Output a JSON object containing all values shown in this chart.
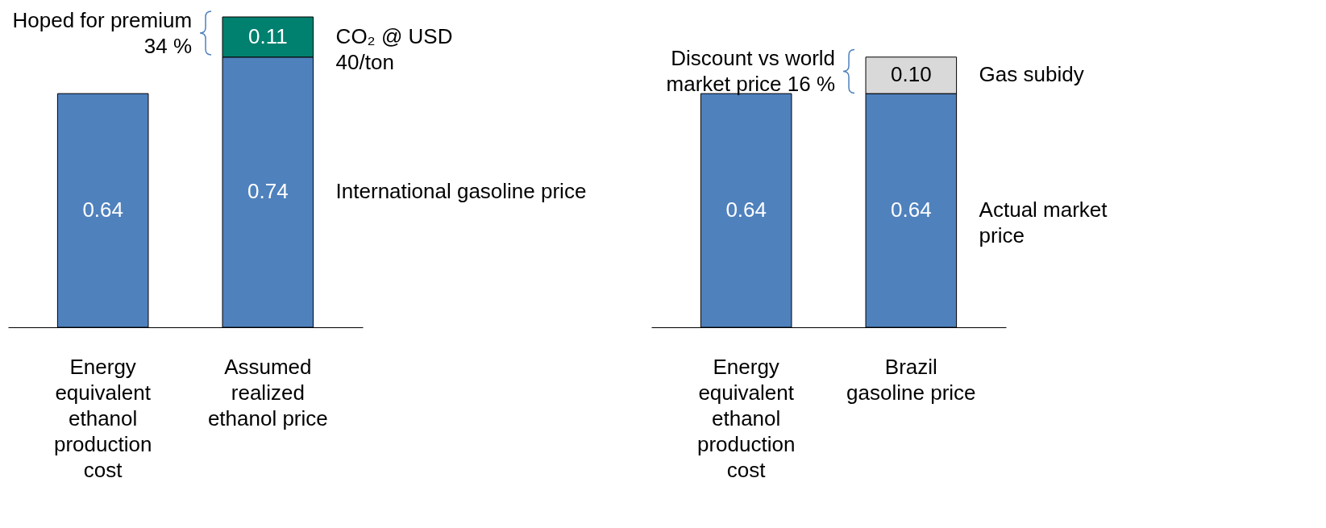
{
  "chart_data": [
    {
      "type": "bar",
      "stacked": true,
      "data_labels": true,
      "tick_labels": "x",
      "categories": [
        "Energy equivalent ethanol production cost",
        "Assumed realized ethanol price"
      ],
      "series": [
        {
          "name": "International gasoline price",
          "color": "#4f81bd",
          "values": [
            0.64,
            0.74
          ]
        },
        {
          "name": "CO₂ @ USD 40/ton",
          "color": "#00806e",
          "values": [
            null,
            0.11
          ]
        }
      ],
      "annotations": [
        "Hoped for premium 34 %"
      ]
    },
    {
      "type": "bar",
      "stacked": true,
      "data_labels": true,
      "tick_labels": "x",
      "categories": [
        "Energy equivalent ethanol production cost",
        "Brazil gasoline price"
      ],
      "series": [
        {
          "name": "Actual market price",
          "color": "#4f81bd",
          "values": [
            0.64,
            0.64
          ]
        },
        {
          "name": "Gas subidy",
          "color": "#d9d9d9",
          "values": [
            null,
            0.1
          ],
          "value_labels": [
            null,
            "0.10"
          ]
        }
      ],
      "annotations": [
        "Discount vs world market price 16 %"
      ]
    }
  ]
}
